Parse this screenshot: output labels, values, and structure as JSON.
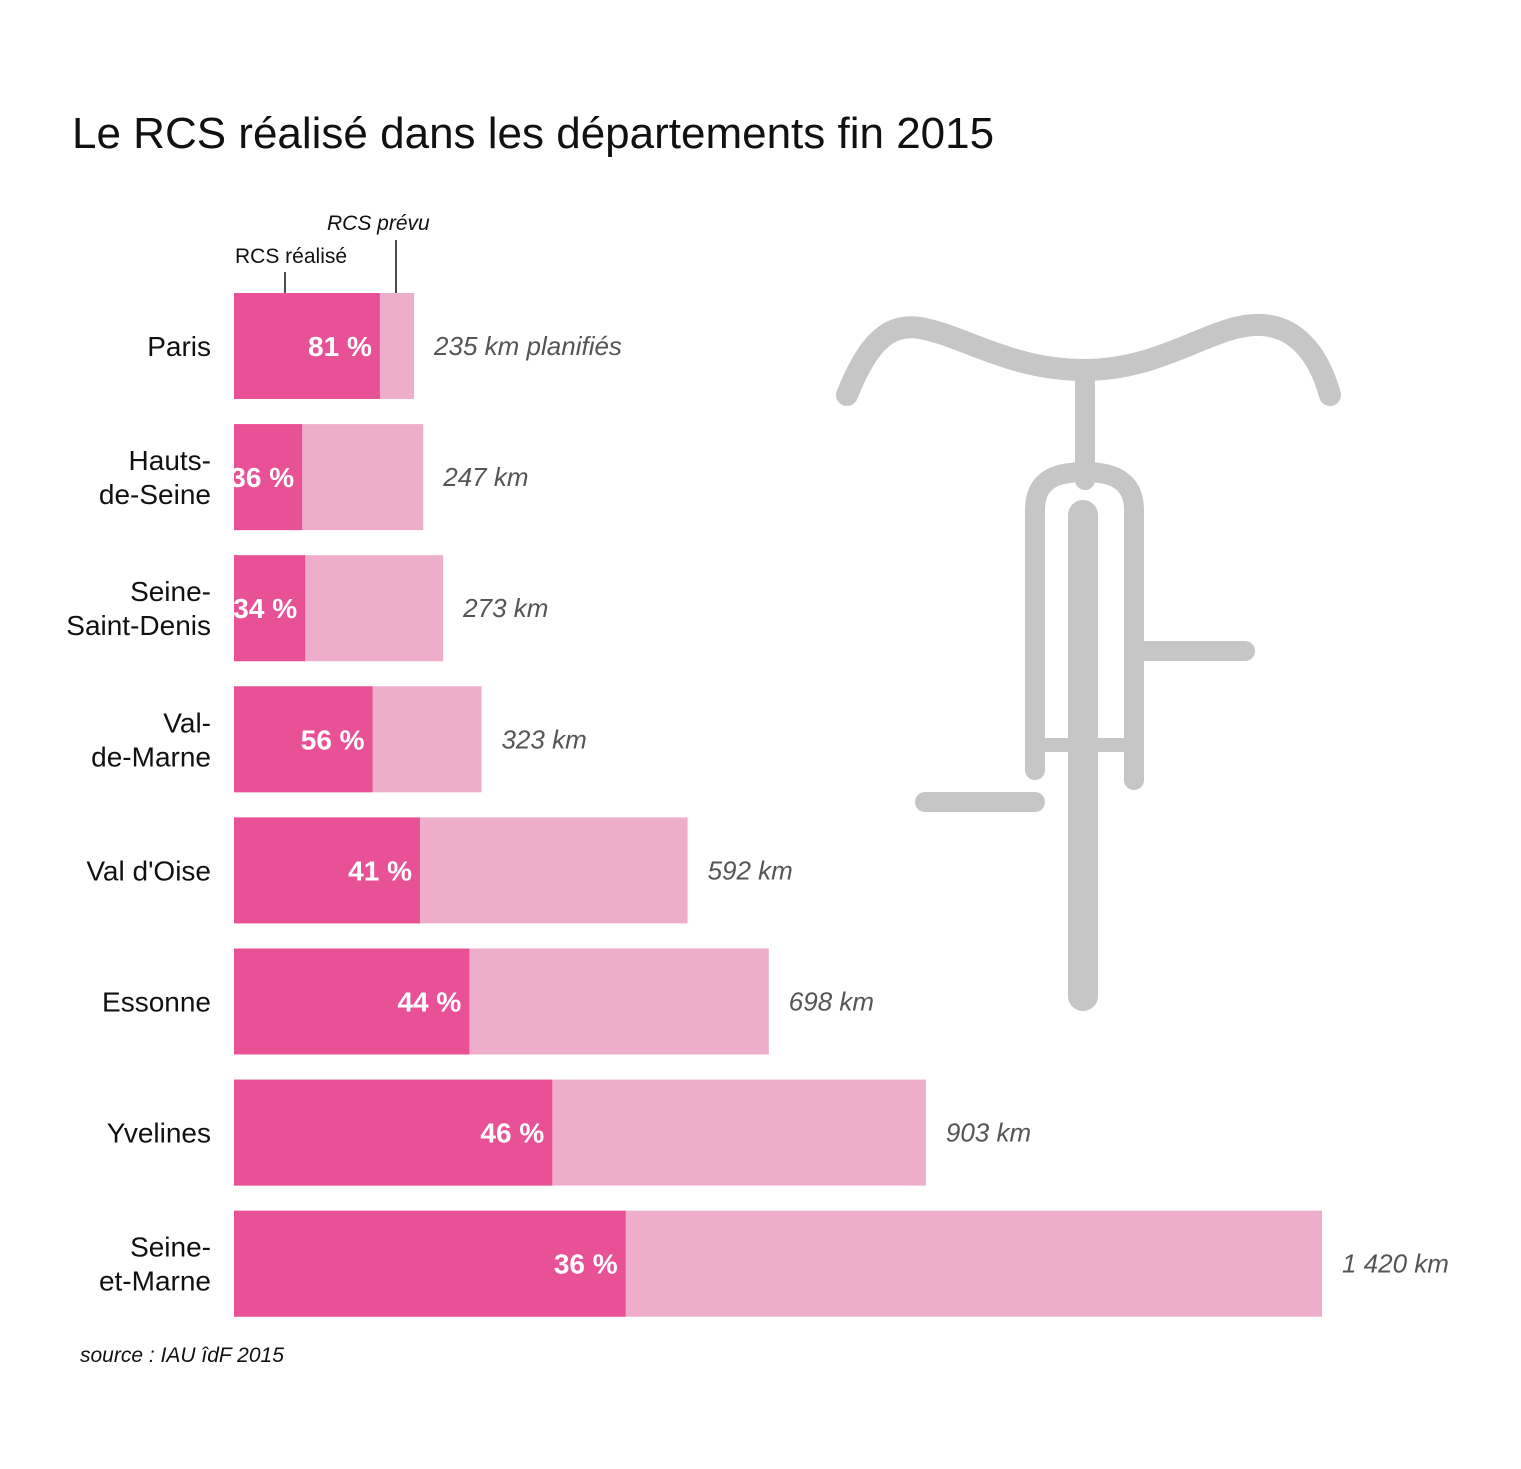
{
  "chart_data": {
    "type": "bar",
    "orientation": "horizontal",
    "stacked": true,
    "title": "Le RCS réalisé dans les départements fin 2015",
    "categories": [
      [
        "Paris"
      ],
      [
        "Hauts-",
        "de-Seine"
      ],
      [
        "Seine-",
        "Saint-Denis"
      ],
      [
        "Val-",
        "de-Marne"
      ],
      [
        "Val d'Oise"
      ],
      [
        "Essonne"
      ],
      [
        "Yvelines"
      ],
      [
        "Seine-",
        "et-Marne"
      ]
    ],
    "planned_km": [
      235,
      247,
      273,
      323,
      592,
      698,
      903,
      1420
    ],
    "realized_pct": [
      81,
      36,
      34,
      56,
      41,
      44,
      46,
      36
    ],
    "pct_labels": [
      "81 %",
      "36 %",
      "34 %",
      "56 %",
      "41 %",
      "44 %",
      "46 %",
      "36 %"
    ],
    "km_labels": [
      "235 km planifiés",
      "247 km",
      "273 km",
      "323 km",
      "592 km",
      "698 km",
      "903 km",
      "1 420 km"
    ],
    "series": [
      {
        "name": "RCS réalisé",
        "color": "#e95196"
      },
      {
        "name": "RCS prévu",
        "color": "#edadcb"
      }
    ],
    "legend": {
      "realized": "RCS réalisé",
      "planned": "RCS prévu",
      "placement": "above first bar"
    },
    "xlim": [
      0,
      1420
    ],
    "grid": false,
    "source": "source :  IAU îdF 2015"
  },
  "decoration": {
    "icon": "bicycle-front-icon",
    "color": "#c6c6c6"
  }
}
